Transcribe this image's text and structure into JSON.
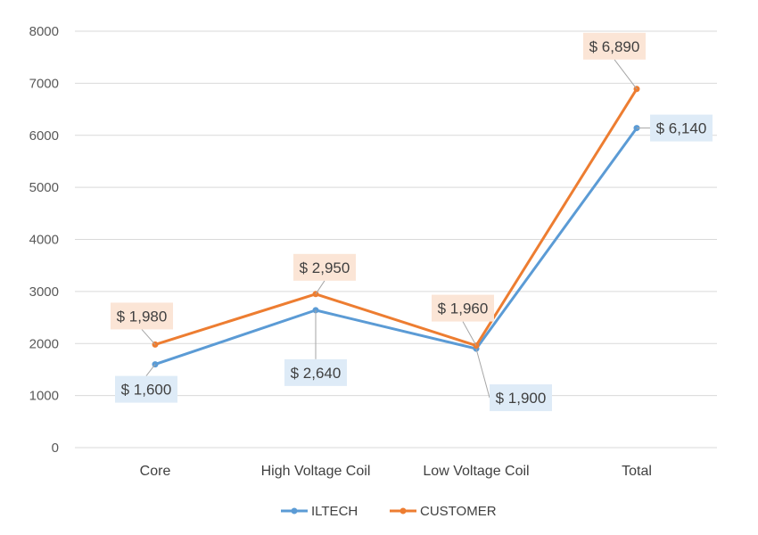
{
  "chart_data": {
    "type": "line",
    "categories": [
      "Core",
      "High Voltage Coil",
      "Low Voltage Coil",
      "Total"
    ],
    "series": [
      {
        "name": "ILTECH",
        "values": [
          1600,
          2640,
          1900,
          6140
        ],
        "labels": [
          "$ 1,600",
          "$ 2,640",
          "$ 1,900",
          "$ 6,140"
        ],
        "color": "#5B9BD5",
        "label_bg": "#DEEBF7"
      },
      {
        "name": "CUSTOMER",
        "values": [
          1980,
          2950,
          1960,
          6890
        ],
        "labels": [
          "$ 1,980",
          "$ 2,950",
          "$ 1,960",
          "$ 6,890"
        ],
        "color": "#ED7D31",
        "label_bg": "#FBE5D6"
      }
    ],
    "yticks": [
      "0",
      "1000",
      "2000",
      "3000",
      "4000",
      "5000",
      "6000",
      "7000",
      "8000"
    ],
    "ylim": [
      0,
      8000
    ],
    "grid": true,
    "legend": "bottom-center"
  }
}
